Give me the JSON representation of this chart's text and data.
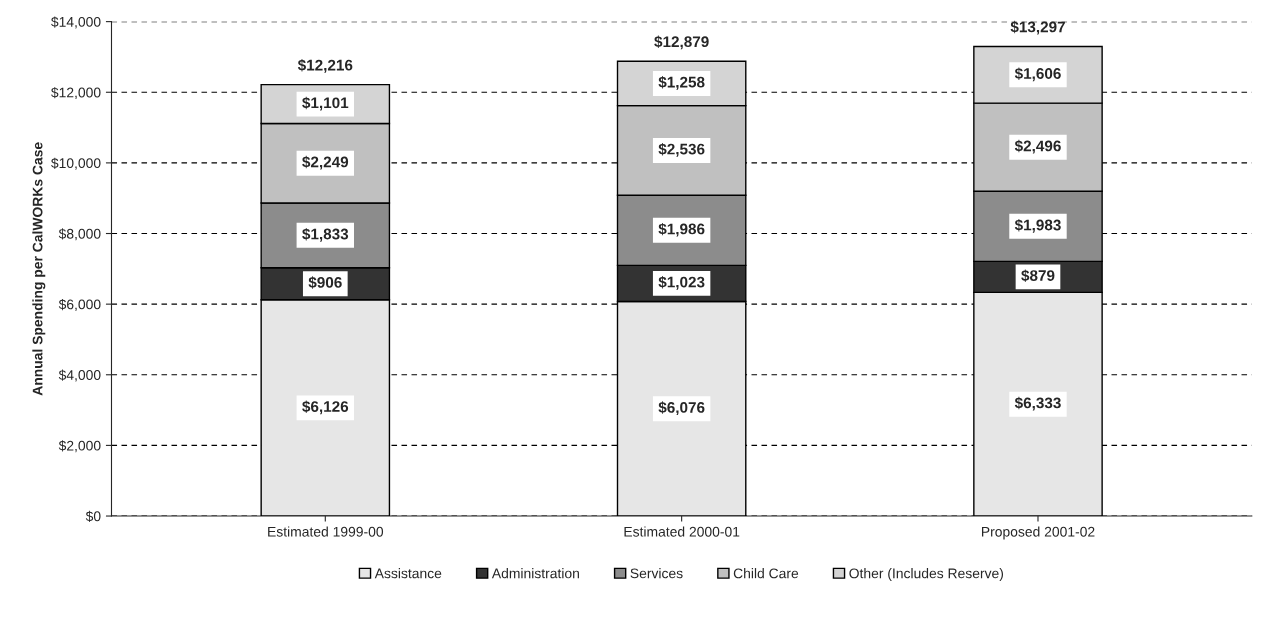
{
  "chart_data": {
    "type": "bar",
    "stacked": true,
    "ylabel": "Annual Spending per CalWORKs Case",
    "categories": [
      "Estimated 1999-00",
      "Estimated 2000-01",
      "Proposed 2001-02"
    ],
    "series": [
      {
        "name": "Assistance",
        "color": "#e6e6e6",
        "values": [
          6126,
          6076,
          6333
        ],
        "value_labels": [
          "$6,126",
          "$6,076",
          "$6,333"
        ]
      },
      {
        "name": "Administration",
        "color": "#333333",
        "values": [
          906,
          1023,
          879
        ],
        "value_labels": [
          "$906",
          "$1,023",
          "$879"
        ]
      },
      {
        "name": "Services",
        "color": "#8c8c8c",
        "values": [
          1833,
          1986,
          1983
        ],
        "value_labels": [
          "$1,833",
          "$1,986",
          "$1,983"
        ]
      },
      {
        "name": "Child Care",
        "color": "#c0c0c0",
        "values": [
          2249,
          2536,
          2496
        ],
        "value_labels": [
          "$2,249",
          "$2,536",
          "$2,496"
        ]
      },
      {
        "name": "Other (Includes Reserve)",
        "color": "#d4d4d4",
        "values": [
          1101,
          1258,
          1606
        ],
        "value_labels": [
          "$1,101",
          "$1,258",
          "$1,606"
        ]
      }
    ],
    "totals": [
      "$12,216",
      "$12,879",
      "$13,297"
    ],
    "ylim": [
      0,
      14000
    ],
    "yticks": [
      {
        "value": 0,
        "label": "$0"
      },
      {
        "value": 2000,
        "label": "$2,000"
      },
      {
        "value": 4000,
        "label": "$4,000"
      },
      {
        "value": 6000,
        "label": "$6,000"
      },
      {
        "value": 8000,
        "label": "$8,000"
      },
      {
        "value": 10000,
        "label": "$10,000"
      },
      {
        "value": 12000,
        "label": "$12,000"
      },
      {
        "value": 14000,
        "label": "$14,000"
      }
    ],
    "grid": "y",
    "legend": "bottom"
  }
}
